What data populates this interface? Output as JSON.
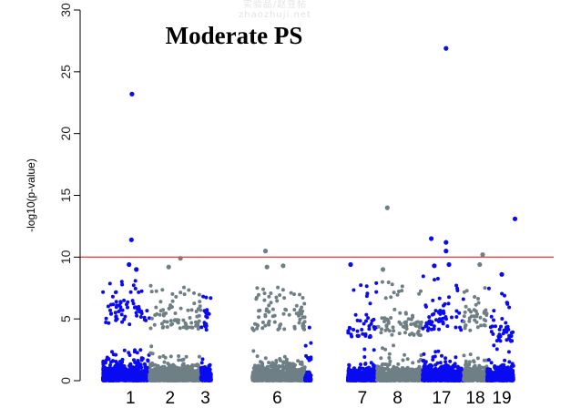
{
  "watermark": {
    "line1": "实验品/赵豆帖",
    "line2": "zhaozhuji.net"
  },
  "chart_data": {
    "type": "scatter",
    "subtype": "manhattan",
    "title": "Moderate PS",
    "xlabel": "",
    "ylabel": "-log10(p-value)",
    "ylim": [
      0,
      30
    ],
    "yticks": [
      0,
      5,
      10,
      15,
      20,
      25,
      30
    ],
    "grid": false,
    "threshold": {
      "value": 10,
      "color": "#e8474f"
    },
    "colors": {
      "blue": "#0b0bf2",
      "grey": "#6e7f85"
    },
    "chromosomes": [
      {
        "label": "1",
        "color": "blue",
        "range": [
          0.0,
          1.6
        ],
        "band_max": 6.5,
        "spike_max": 8.2
      },
      {
        "label": "2",
        "color": "grey",
        "range": [
          1.6,
          3.35
        ],
        "band_max": 6.0,
        "spike_max": 8.0
      },
      {
        "label": "3",
        "color": "blue",
        "range": [
          3.35,
          3.7
        ],
        "band_max": 5.8,
        "spike_max": 7.5
      },
      {
        "label": "6",
        "color": "grey",
        "range": [
          5.1,
          6.9
        ],
        "band_max": 5.8,
        "spike_max": 7.6
      },
      {
        "label": "",
        "color": "blue",
        "range": [
          6.9,
          7.1
        ],
        "band_max": 2.0,
        "spike_max": 4.5
      },
      {
        "label": "7",
        "color": "blue",
        "range": [
          8.35,
          9.35
        ],
        "band_max": 5.0,
        "spike_max": 8.0
      },
      {
        "label": "8",
        "color": "grey",
        "range": [
          9.35,
          10.9
        ],
        "band_max": 5.2,
        "spike_max": 8.0
      },
      {
        "label": "17",
        "color": "blue",
        "range": [
          10.9,
          12.3
        ],
        "band_max": 5.8,
        "spike_max": 8.5
      },
      {
        "label": "18",
        "color": "grey",
        "range": [
          12.3,
          13.1
        ],
        "band_max": 5.8,
        "spike_max": 7.8
      },
      {
        "label": "19",
        "color": "blue",
        "range": [
          13.1,
          14.0
        ],
        "band_max": 4.5,
        "spike_max": 7.5
      }
    ],
    "x_label_positions": [
      {
        "label": "1",
        "x": 0.95
      },
      {
        "label": "2",
        "x": 2.3
      },
      {
        "label": "3",
        "x": 3.5
      },
      {
        "label": "6",
        "x": 5.95
      },
      {
        "label": "7",
        "x": 8.85
      },
      {
        "label": "8",
        "x": 10.05
      },
      {
        "label": "17",
        "x": 11.55
      },
      {
        "label": "18",
        "x": 12.7
      },
      {
        "label": "19",
        "x": 13.6
      }
    ],
    "x_range": [
      -0.3,
      14.5
    ],
    "highlight_points": [
      {
        "x": 1.0,
        "y": 23.2,
        "color": "blue"
      },
      {
        "x": 0.98,
        "y": 11.4,
        "color": "blue"
      },
      {
        "x": 0.9,
        "y": 9.4,
        "color": "blue"
      },
      {
        "x": 1.15,
        "y": 9.0,
        "color": "blue"
      },
      {
        "x": 2.65,
        "y": 9.9,
        "color": "grey"
      },
      {
        "x": 2.25,
        "y": 9.2,
        "color": "grey"
      },
      {
        "x": 5.55,
        "y": 10.5,
        "color": "grey"
      },
      {
        "x": 5.6,
        "y": 9.2,
        "color": "grey"
      },
      {
        "x": 6.15,
        "y": 9.3,
        "color": "grey"
      },
      {
        "x": 8.45,
        "y": 9.4,
        "color": "blue"
      },
      {
        "x": 9.7,
        "y": 14.0,
        "color": "grey"
      },
      {
        "x": 9.55,
        "y": 9.0,
        "color": "grey"
      },
      {
        "x": 11.2,
        "y": 11.5,
        "color": "blue"
      },
      {
        "x": 11.7,
        "y": 26.9,
        "color": "blue"
      },
      {
        "x": 11.7,
        "y": 11.2,
        "color": "blue"
      },
      {
        "x": 11.7,
        "y": 10.5,
        "color": "blue"
      },
      {
        "x": 11.3,
        "y": 9.3,
        "color": "blue"
      },
      {
        "x": 11.8,
        "y": 9.4,
        "color": "blue"
      },
      {
        "x": 12.95,
        "y": 10.2,
        "color": "grey"
      },
      {
        "x": 12.85,
        "y": 9.4,
        "color": "grey"
      },
      {
        "x": 13.6,
        "y": 8.6,
        "color": "blue"
      },
      {
        "x": 14.05,
        "y": 13.1,
        "color": "blue"
      }
    ]
  }
}
